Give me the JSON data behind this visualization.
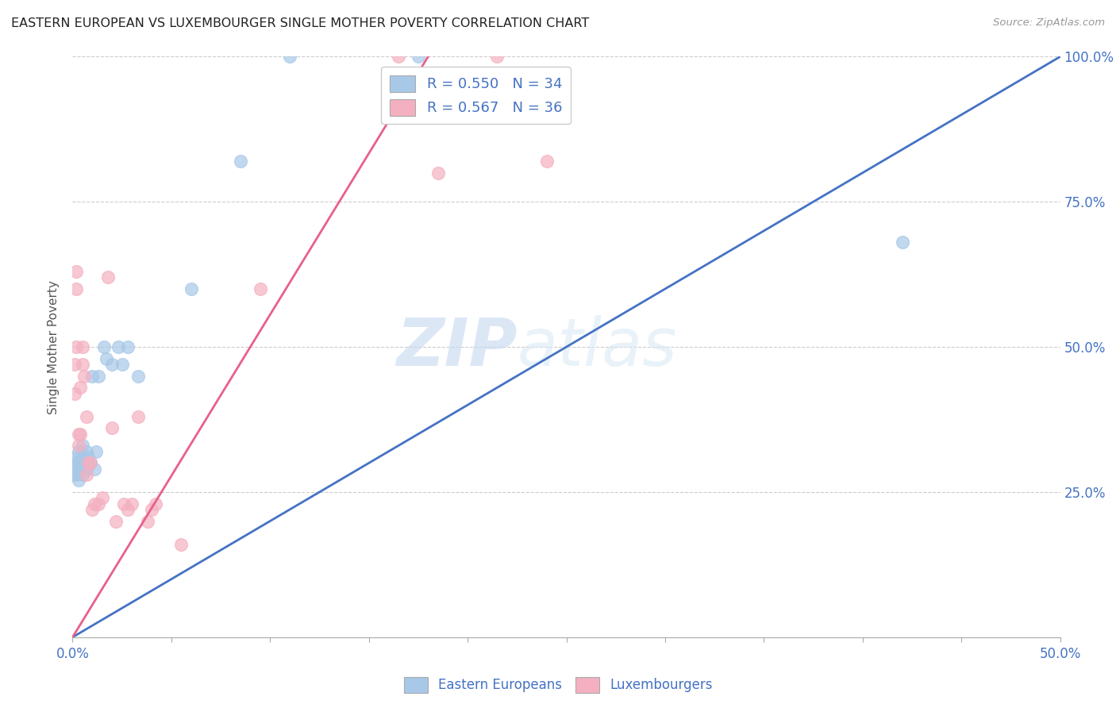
{
  "title": "EASTERN EUROPEAN VS LUXEMBOURGER SINGLE MOTHER POVERTY CORRELATION CHART",
  "source": "Source: ZipAtlas.com",
  "ylabel": "Single Mother Poverty",
  "xlim": [
    0.0,
    0.5
  ],
  "ylim": [
    0.0,
    1.0
  ],
  "blue_color": "#A8C8E8",
  "pink_color": "#F4B0C0",
  "blue_line_color": "#4472C4",
  "pink_line_color": "#E8608A",
  "legend_text_color": "#4472C4",
  "watermark_zip": "ZIP",
  "watermark_atlas": "atlas",
  "R_blue": 0.55,
  "N_blue": 34,
  "R_pink": 0.567,
  "N_pink": 36,
  "blue_line_x0": 0.0,
  "blue_line_y0": 0.0,
  "blue_line_x1": 0.5,
  "blue_line_y1": 1.0,
  "pink_line_x0": 0.0,
  "pink_line_y0": 0.0,
  "pink_line_x1": 0.18,
  "pink_line_y1": 1.0,
  "blue_x": [
    0.001,
    0.001,
    0.002,
    0.002,
    0.002,
    0.003,
    0.003,
    0.003,
    0.004,
    0.004,
    0.005,
    0.005,
    0.005,
    0.006,
    0.007,
    0.007,
    0.008,
    0.009,
    0.01,
    0.011,
    0.012,
    0.013,
    0.016,
    0.017,
    0.02,
    0.023,
    0.025,
    0.028,
    0.033,
    0.06,
    0.085,
    0.11,
    0.175,
    0.42
  ],
  "blue_y": [
    0.3,
    0.28,
    0.29,
    0.31,
    0.28,
    0.3,
    0.27,
    0.32,
    0.3,
    0.29,
    0.31,
    0.28,
    0.33,
    0.3,
    0.29,
    0.32,
    0.31,
    0.3,
    0.45,
    0.29,
    0.32,
    0.45,
    0.5,
    0.48,
    0.47,
    0.5,
    0.47,
    0.5,
    0.45,
    0.6,
    0.82,
    1.0,
    1.0,
    0.68
  ],
  "pink_x": [
    0.001,
    0.001,
    0.002,
    0.002,
    0.002,
    0.003,
    0.003,
    0.004,
    0.004,
    0.005,
    0.005,
    0.006,
    0.007,
    0.007,
    0.008,
    0.009,
    0.01,
    0.011,
    0.013,
    0.015,
    0.018,
    0.02,
    0.022,
    0.026,
    0.028,
    0.03,
    0.033,
    0.038,
    0.04,
    0.042,
    0.055,
    0.095,
    0.165,
    0.185,
    0.215,
    0.24
  ],
  "pink_y": [
    0.42,
    0.47,
    0.5,
    0.6,
    0.63,
    0.33,
    0.35,
    0.35,
    0.43,
    0.47,
    0.5,
    0.45,
    0.28,
    0.38,
    0.3,
    0.3,
    0.22,
    0.23,
    0.23,
    0.24,
    0.62,
    0.36,
    0.2,
    0.23,
    0.22,
    0.23,
    0.38,
    0.2,
    0.22,
    0.23,
    0.16,
    0.6,
    1.0,
    0.8,
    1.0,
    0.82
  ]
}
